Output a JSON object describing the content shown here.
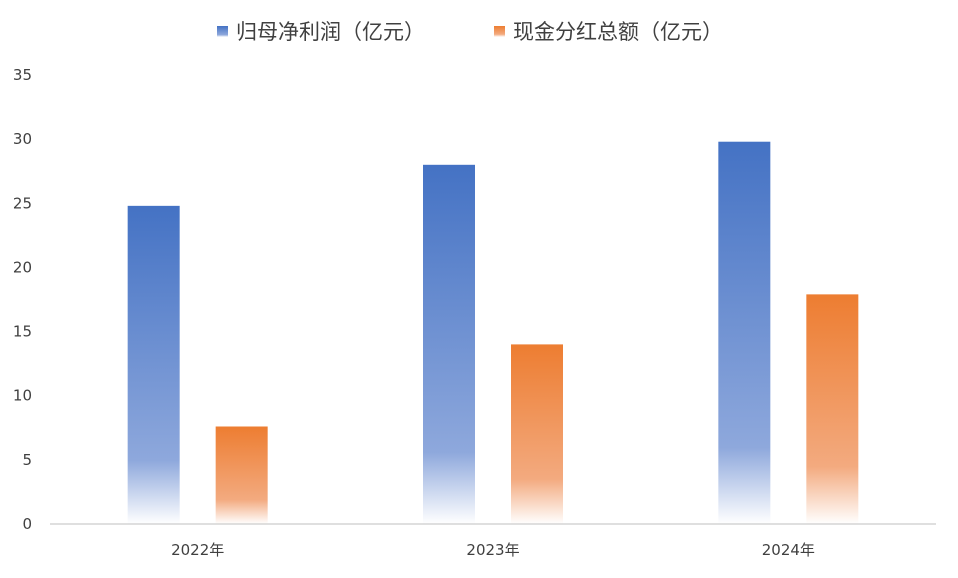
{
  "chart_data": {
    "type": "bar",
    "title": "",
    "xlabel": "",
    "ylabel": "",
    "categories": [
      "2022年",
      "2023年",
      "2024年"
    ],
    "series": [
      {
        "name": "归母净利润（亿元）",
        "values": [
          24.8,
          28.0,
          29.8
        ],
        "color": "#4472C4"
      },
      {
        "name": "现金分红总额（亿元）",
        "values": [
          7.6,
          14.0,
          17.9
        ],
        "color": "#ED7D31"
      }
    ],
    "ylim": [
      0,
      35
    ],
    "yticks": [
      "0",
      "5",
      "10",
      "15",
      "20",
      "25",
      "30",
      "35"
    ],
    "grid": false,
    "legend_position": "top-center"
  }
}
